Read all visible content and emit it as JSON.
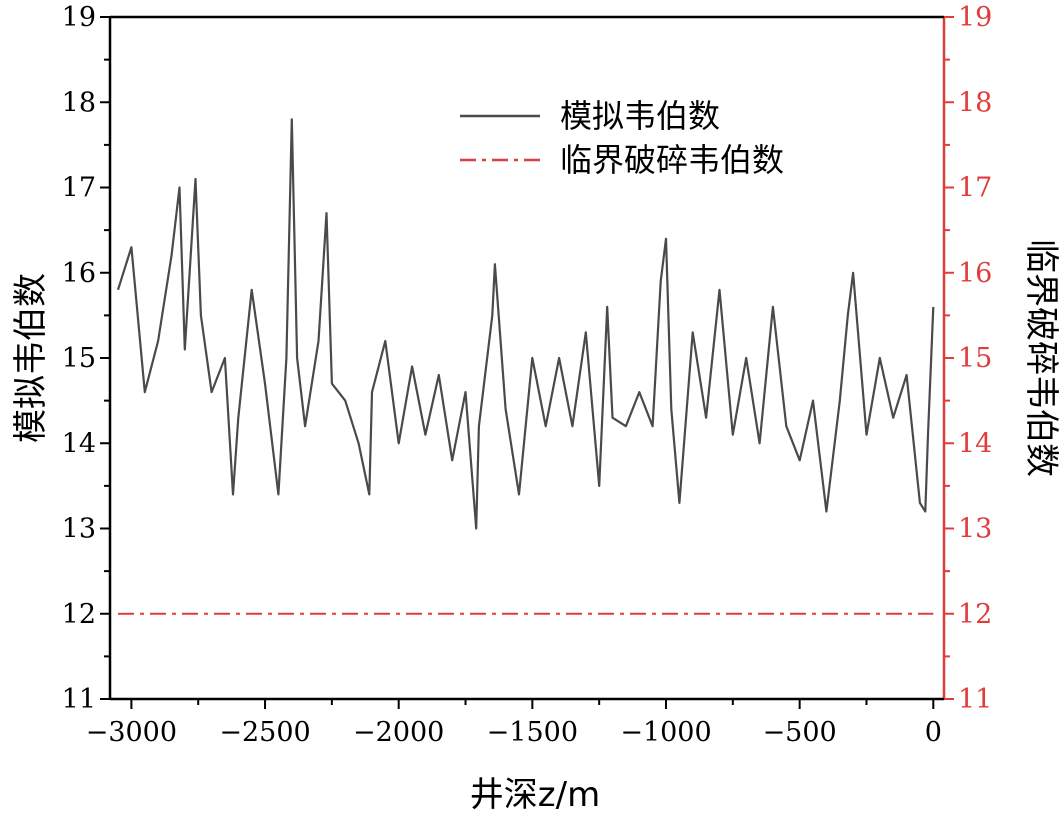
{
  "chart_data": {
    "type": "line",
    "title": "",
    "xlabel": "井深z/m",
    "ylabel_left": "模拟韦伯数",
    "ylabel_right": "临界破碎韦伯数",
    "xlim": [
      -3080,
      40
    ],
    "ylim_left": [
      11,
      19
    ],
    "ylim_right": [
      11,
      19
    ],
    "x_ticks": [
      -3000,
      -2500,
      -2000,
      -1500,
      -1000,
      -500,
      0
    ],
    "x_tick_labels": [
      "−3000",
      "−2500",
      "−2000",
      "−1500",
      "−1000",
      "−500",
      "0"
    ],
    "y_ticks": [
      11,
      12,
      13,
      14,
      15,
      16,
      17,
      18,
      19
    ],
    "y_tick_labels": [
      "11",
      "12",
      "13",
      "14",
      "15",
      "16",
      "17",
      "18",
      "19"
    ],
    "grid": false,
    "legend_position": "top-right",
    "colors": {
      "simulated": "#4a4a4a",
      "critical": "#e03c3c",
      "right_axis": "#e03c3c",
      "frame": "#000000"
    },
    "series": [
      {
        "name": "模拟韦伯数",
        "style": "solid",
        "x": [
          -3050,
          -3000,
          -2950,
          -2900,
          -2850,
          -2820,
          -2800,
          -2760,
          -2740,
          -2700,
          -2650,
          -2620,
          -2600,
          -2550,
          -2500,
          -2450,
          -2420,
          -2400,
          -2380,
          -2350,
          -2300,
          -2270,
          -2250,
          -2200,
          -2150,
          -2110,
          -2100,
          -2050,
          -2000,
          -1950,
          -1900,
          -1850,
          -1800,
          -1750,
          -1710,
          -1700,
          -1650,
          -1640,
          -1600,
          -1550,
          -1500,
          -1450,
          -1400,
          -1350,
          -1300,
          -1250,
          -1220,
          -1200,
          -1150,
          -1100,
          -1050,
          -1020,
          -1000,
          -980,
          -950,
          -900,
          -850,
          -800,
          -750,
          -700,
          -650,
          -600,
          -550,
          -500,
          -450,
          -400,
          -350,
          -320,
          -300,
          -250,
          -200,
          -150,
          -100,
          -50,
          -30,
          -20,
          0
        ],
        "y": [
          15.8,
          16.3,
          14.6,
          15.2,
          16.2,
          17.0,
          15.1,
          17.1,
          15.5,
          14.6,
          15.0,
          13.4,
          14.3,
          15.8,
          14.7,
          13.4,
          15.0,
          17.8,
          15.0,
          14.2,
          15.2,
          16.7,
          14.7,
          14.5,
          14.0,
          13.4,
          14.6,
          15.2,
          14.0,
          14.9,
          14.1,
          14.8,
          13.8,
          14.6,
          13.0,
          14.2,
          15.5,
          16.1,
          14.4,
          13.4,
          15.0,
          14.2,
          15.0,
          14.2,
          15.3,
          13.5,
          15.6,
          14.3,
          14.2,
          14.6,
          14.2,
          15.9,
          16.4,
          14.4,
          13.3,
          15.3,
          14.3,
          15.8,
          14.1,
          15.0,
          14.0,
          15.6,
          14.2,
          13.8,
          14.5,
          13.2,
          14.5,
          15.5,
          16.0,
          14.1,
          15.0,
          14.3,
          14.8,
          13.3,
          13.2,
          14.1,
          15.6
        ]
      },
      {
        "name": "临界破碎韦伯数",
        "style": "dash-dot",
        "x": [
          -3050,
          0
        ],
        "y": [
          12,
          12
        ]
      }
    ]
  }
}
